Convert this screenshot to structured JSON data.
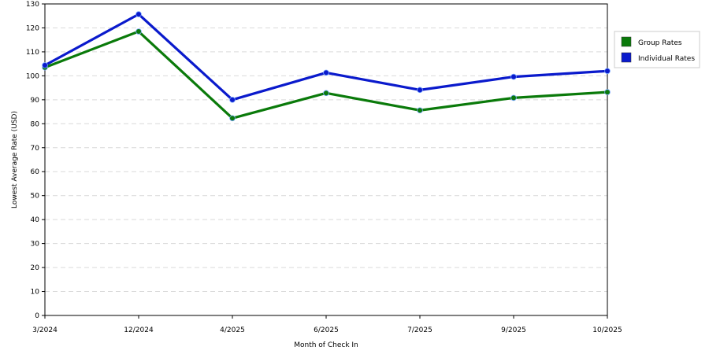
{
  "chart_data": {
    "type": "line",
    "title": "",
    "xlabel": "Month of Check In",
    "ylabel": "Lowest Average Rate (USD)",
    "ylim": [
      0,
      130
    ],
    "yticks": [
      0,
      10,
      20,
      30,
      40,
      50,
      60,
      70,
      80,
      90,
      100,
      110,
      120,
      130
    ],
    "categories": [
      "3/2024",
      "12/2024",
      "4/2025",
      "6/2025",
      "7/2025",
      "9/2025",
      "10/2025"
    ],
    "series": [
      {
        "name": "Group Rates",
        "color": "#0a7a0a",
        "values": [
          103.5,
          118.5,
          82.3,
          92.8,
          85.6,
          90.8,
          93.2
        ]
      },
      {
        "name": "Individual Rates",
        "color": "#0a1acc",
        "values": [
          104.4,
          125.7,
          90.0,
          101.3,
          94.1,
          99.6,
          102.0
        ]
      }
    ],
    "grid": true,
    "legend": "right"
  }
}
